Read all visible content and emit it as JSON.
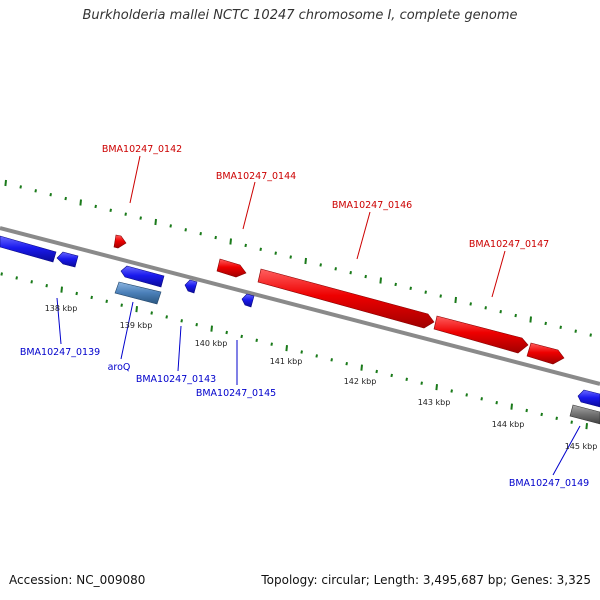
{
  "title": "Burkholderia mallei NCTC 10247 chromosome I, complete genome",
  "accession": "Accession: NC_009080",
  "topology": "Topology: circular; Length: 3,495,687 bp; Genes: 3,325",
  "colors": {
    "forward": "#ee0000",
    "reverse": "#1a1aee",
    "reverse_light": "#4a7fb8",
    "other": "#707070",
    "tick": "#1a7a1a",
    "backbone": "#8a8a8a",
    "label_forward": "#cc0000",
    "label_reverse": "#0000cc"
  },
  "kbp_ticks": [
    "138 kbp",
    "139 kbp",
    "140 kbp",
    "141 kbp",
    "142 kbp",
    "143 kbp",
    "144 kbp",
    "145 kbp"
  ],
  "forward_labels": [
    "BMA10247_0142",
    "BMA10247_0144",
    "BMA10247_0146",
    "BMA10247_0147"
  ],
  "reverse_labels": [
    "BMA10247_0139",
    "aroQ",
    "BMA10247_0143",
    "BMA10247_0145",
    "BMA10247_0149"
  ]
}
